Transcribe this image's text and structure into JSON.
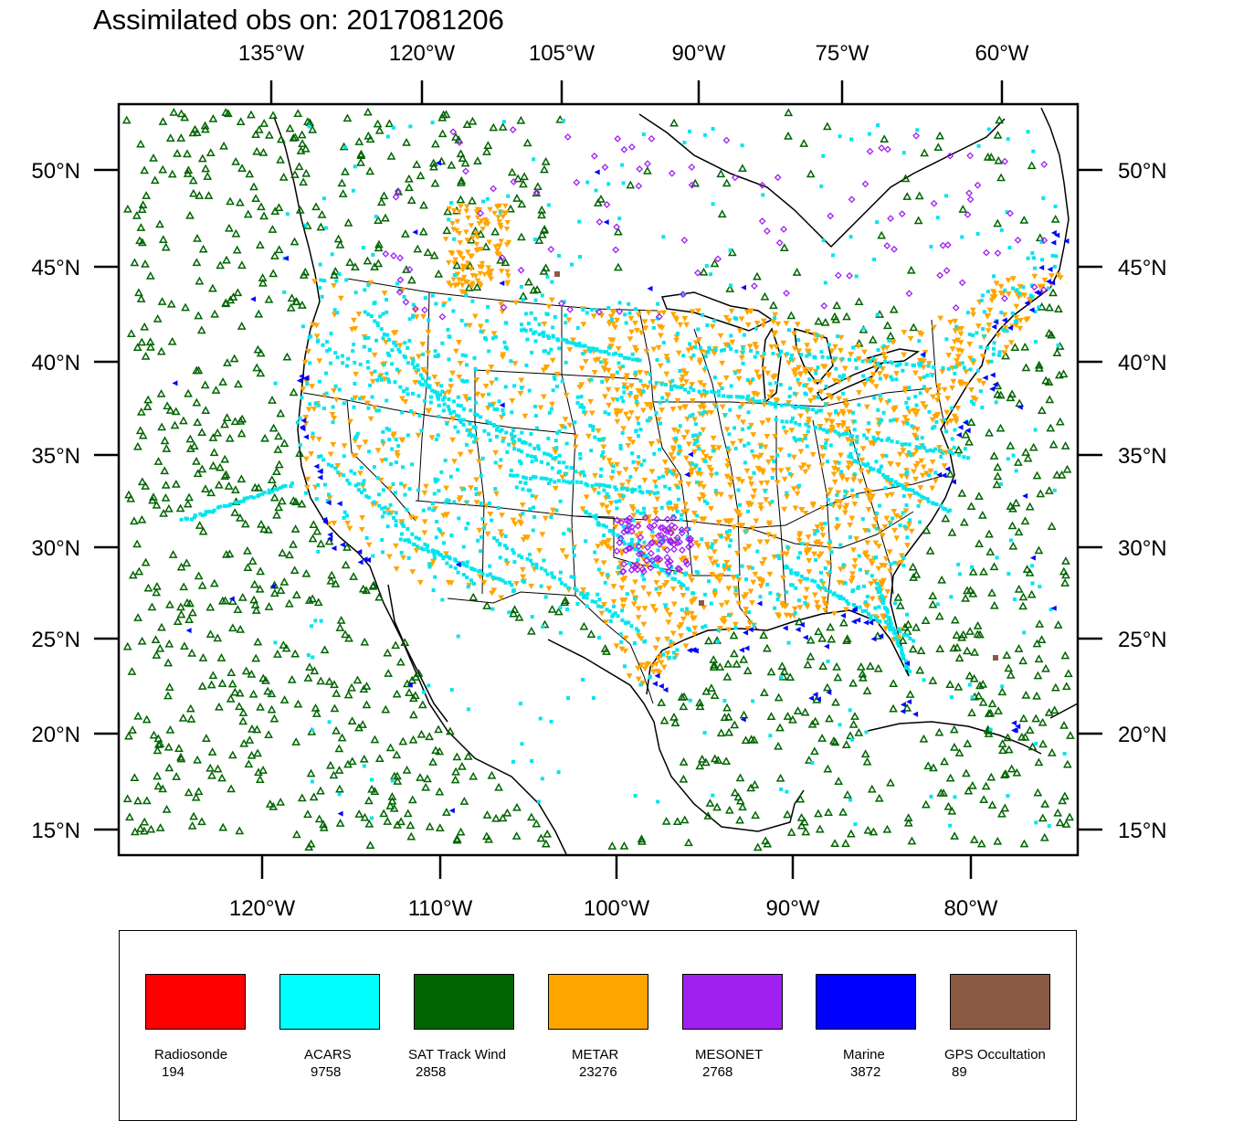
{
  "title": "Assimilated obs on: 2017081206",
  "axes": {
    "top_lon_labels": [
      "135°W",
      "120°W",
      "105°W",
      "90°W",
      "75°W",
      "60°W"
    ],
    "bottom_lon_labels": [
      "120°W",
      "110°W",
      "100°W",
      "90°W",
      "80°W"
    ],
    "left_lat_labels": [
      "50°N",
      "45°N",
      "40°N",
      "35°N",
      "30°N",
      "25°N",
      "20°N",
      "15°N"
    ],
    "right_lat_labels": [
      "50°N",
      "45°N",
      "40°N",
      "35°N",
      "30°N",
      "25°N",
      "20°N",
      "15°N"
    ]
  },
  "map": {
    "region": "Continental United States, Mexico, Gulf of Mexico, Caribbean",
    "features": [
      "coastlines",
      "US state boundaries",
      "country boundaries",
      "Great Lakes"
    ]
  },
  "legend": [
    {
      "name": "Radiosonde",
      "count": "194",
      "color": "#ff0000"
    },
    {
      "name": "ACARS",
      "count": "9758",
      "color": "#00ffff"
    },
    {
      "name": "SAT Track Wind",
      "count": "2858",
      "color": "#006400"
    },
    {
      "name": "METAR",
      "count": "23276",
      "color": "#ffa500"
    },
    {
      "name": "MESONET",
      "count": "2768",
      "color": "#a020f0"
    },
    {
      "name": "Marine",
      "count": "3872",
      "color": "#0000ff"
    },
    {
      "name": "GPS Occultation",
      "count": "89",
      "color": "#8b5a45"
    }
  ],
  "colors": {
    "acars": "#00e5ee",
    "sat_track_wind": "#006400",
    "metar": "#ffa500",
    "mesonet": "#a020f0",
    "marine": "#0000ff",
    "gps": "#8b5a45"
  }
}
